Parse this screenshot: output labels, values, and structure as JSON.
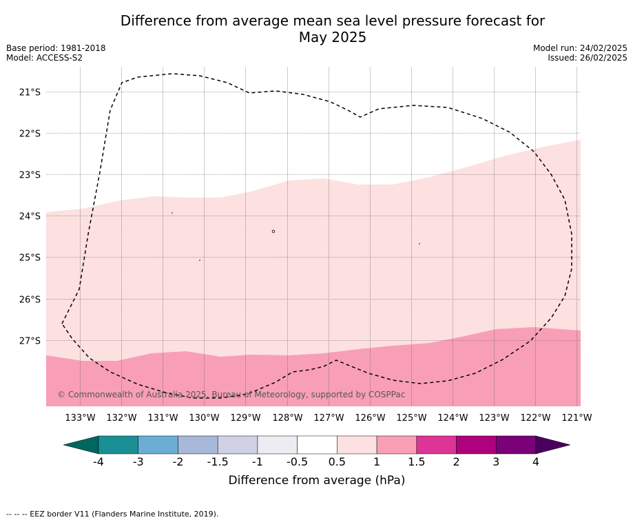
{
  "title_line1": "Difference from average mean sea level pressure forecast for",
  "title_line2": "May 2025",
  "base_period": "Base period: 1981-2018",
  "model": "Model: ACCESS-S2",
  "model_run": "Model run: 24/02/2025",
  "issued": "Issued: 26/02/2025",
  "copyright": "© Commonwealth of Australia 2025, Bureau of Meteorology, supported by COSPPac",
  "lat_labels": [
    "21°S",
    "22°S",
    "23°S",
    "24°S",
    "25°S",
    "26°S",
    "27°S"
  ],
  "lon_labels": [
    "133°W",
    "132°W",
    "131°W",
    "130°W",
    "129°W",
    "128°W",
    "127°W",
    "126°W",
    "125°W",
    "124°W",
    "123°W",
    "122°W",
    "121°W"
  ],
  "map_regions": [
    {
      "name": "pressure-anomaly-0.5-to-1",
      "range": "0.5 to 1 hPa",
      "color": "#fde0e0"
    },
    {
      "name": "pressure-anomaly-1-to-1.5",
      "range": "1 to 1.5 hPa",
      "color": "#f89fb7"
    }
  ],
  "colorbar": {
    "title": "Difference from average (hPa)",
    "ticks": [
      "-4",
      "-3",
      "-2",
      "-1.5",
      "-1",
      "-0.5",
      "0.5",
      "1",
      "1.5",
      "2",
      "3",
      "4"
    ],
    "colors": [
      "#1a8f94",
      "#6badd4",
      "#a7b8d9",
      "#d0d1e7",
      "#ececf2",
      "#ffffff",
      "#fde0e0",
      "#f89fb7",
      "#dd3497",
      "#ae017e",
      "#7a0177"
    ],
    "extend_low_color": "#00675e",
    "extend_high_color": "#49005f"
  },
  "footer": "--  --  -- EEZ border V11 (Flanders Marine Institute, 2019)."
}
